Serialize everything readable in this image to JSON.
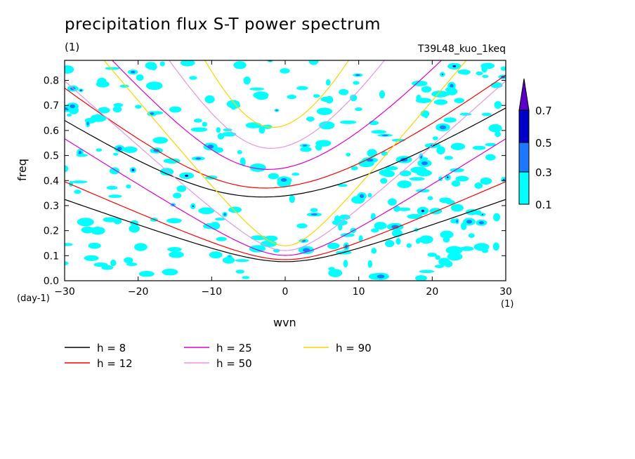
{
  "chart_data": {
    "type": "contour",
    "title": "precipitation flux S-T power spectrum",
    "subtitle_left": "(1)",
    "subtitle_right": "T39L48_kuo_1keq",
    "xlabel": "wvn",
    "ylabel": "freq",
    "x_unit": "(1)",
    "y_unit": "(day-1)",
    "xlim": [
      -30,
      30
    ],
    "ylim": [
      0,
      0.88
    ],
    "x_ticks": [
      -30,
      -20,
      -10,
      0,
      10,
      20,
      30
    ],
    "y_ticks": [
      0.0,
      0.1,
      0.2,
      0.3,
      0.4,
      0.5,
      0.6,
      0.7,
      0.8
    ],
    "y_tick_labels": [
      "0.0",
      "0.1",
      "0.2",
      "0.3",
      "0.4",
      "0.5",
      "0.6",
      "0.7",
      "0.8"
    ],
    "contour_levels": [
      0.1,
      0.3,
      0.5,
      0.7
    ],
    "colorbar_labels": [
      "0.1",
      "0.3",
      "0.5",
      "0.7"
    ],
    "colorbar_colors": [
      "#00ffff",
      "#1e78ff",
      "#0000c8",
      "#5a00c8"
    ],
    "dispersion_curves": [
      {
        "label": "h =  8",
        "h": 8,
        "color": "#000000"
      },
      {
        "label": "h = 12",
        "h": 12,
        "color": "#ff0000"
      },
      {
        "label": "h = 25",
        "h": 25,
        "color": "#e100d2"
      },
      {
        "label": "h = 50",
        "h": 50,
        "color": "#e696e6"
      },
      {
        "label": "h = 90",
        "h": 90,
        "color": "#ffd200"
      }
    ]
  }
}
